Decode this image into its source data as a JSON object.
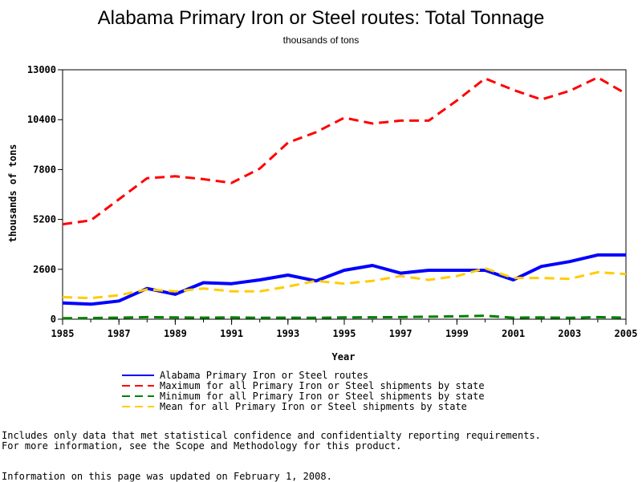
{
  "chart_data": {
    "type": "line",
    "title": "Alabama Primary Iron or Steel routes: Total Tonnage",
    "subtitle": "thousands of tons",
    "xlabel": "Year",
    "ylabel": "thousands of tons",
    "xlim": [
      1985,
      2005
    ],
    "ylim": [
      0,
      13000
    ],
    "x": [
      1985,
      1986,
      1987,
      1988,
      1989,
      1990,
      1991,
      1992,
      1993,
      1994,
      1995,
      1996,
      1997,
      1998,
      1999,
      2000,
      2001,
      2002,
      2003,
      2004,
      2005
    ],
    "x_ticks": [
      "1985",
      "1987",
      "1989",
      "1991",
      "1993",
      "1995",
      "1997",
      "1999",
      "2001",
      "2003",
      "2005"
    ],
    "y_ticks": [
      "0",
      "2600",
      "5200",
      "7800",
      "10400",
      "13000"
    ],
    "grid": false,
    "legend_position": "bottom",
    "series": [
      {
        "name": "Alabama Primary Iron or Steel routes",
        "color": "#0000ff",
        "style": "solid",
        "values": [
          850,
          780,
          950,
          1600,
          1300,
          1900,
          1850,
          2050,
          2300,
          2000,
          2550,
          2800,
          2400,
          2550,
          2550,
          2550,
          2050,
          2750,
          3000,
          3350,
          3350
        ]
      },
      {
        "name": "Maximum for all Primary Iron or Steel shipments by state",
        "color": "#ff0000",
        "style": "dashed",
        "values": [
          4950,
          5150,
          6250,
          7350,
          7450,
          7300,
          7100,
          7850,
          9200,
          9750,
          10500,
          10200,
          10350,
          10350,
          11400,
          12550,
          11950,
          11450,
          11900,
          12600,
          11750
        ]
      },
      {
        "name": "Minimum for all Primary Iron or Steel shipments by state",
        "color": "#008000",
        "style": "dashed",
        "values": [
          50,
          60,
          80,
          110,
          90,
          80,
          90,
          70,
          80,
          70,
          90,
          100,
          110,
          130,
          150,
          180,
          80,
          90,
          70,
          110,
          80
        ]
      },
      {
        "name": "Mean for all Primary Iron or Steel shipments by state",
        "color": "#ffcc00",
        "style": "dashed",
        "values": [
          1150,
          1100,
          1250,
          1550,
          1450,
          1600,
          1450,
          1450,
          1700,
          2000,
          1850,
          2000,
          2250,
          2050,
          2250,
          2650,
          2150,
          2150,
          2100,
          2450,
          2350
        ]
      }
    ]
  },
  "notes": {
    "line1": "Includes only data that met statistical confidence and confidentialty reporting requirements.",
    "line2": "For more information, see the Scope and Methodology for this product.",
    "updated": "Information on this page was updated on February 1, 2008."
  }
}
